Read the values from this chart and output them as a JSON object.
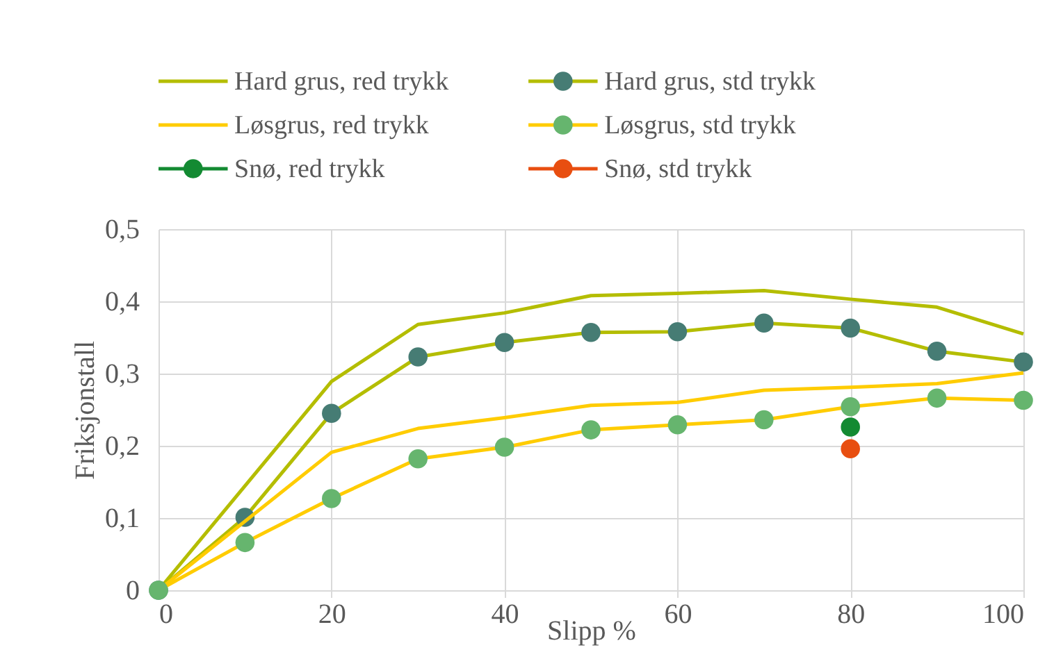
{
  "chart_data": {
    "type": "line",
    "xlabel": "Slipp %",
    "ylabel": "Friksjonstall",
    "xlim": [
      0,
      100
    ],
    "xticks": [
      0,
      20,
      40,
      60,
      80,
      100
    ],
    "ylim": [
      0,
      0.5
    ],
    "yticks": [
      {
        "value": 0,
        "label": "0"
      },
      {
        "value": 0.1,
        "label": "0,1"
      },
      {
        "value": 0.2,
        "label": "0,2"
      },
      {
        "value": 0.3,
        "label": "0,3"
      },
      {
        "value": 0.4,
        "label": "0,4"
      },
      {
        "value": 0.5,
        "label": "0,5"
      }
    ],
    "grid": true,
    "legend": "top",
    "series": [
      {
        "name": "Hard grus, red trykk",
        "marker": "none",
        "color": "#b4bd00",
        "x": [
          0,
          20,
          30,
          40,
          50,
          60,
          70,
          80,
          90,
          100
        ],
        "values": [
          0,
          0.289,
          0.368,
          0.384,
          0.408,
          0.411,
          0.415,
          0.403,
          0.392,
          0.355
        ]
      },
      {
        "name": "Hard grus, std trykk",
        "marker": "circle",
        "color": "#b4bd00",
        "colors": [
          "#467c74",
          "#467c74",
          "#467c74",
          "#467c74",
          "#467c74",
          "#467c74",
          "#467c74",
          "#467c74",
          "#467c74",
          "#467c74",
          "#467c74"
        ],
        "x": [
          0,
          10,
          20,
          30,
          40,
          50,
          60,
          70,
          80,
          90,
          100
        ],
        "values": [
          0,
          0.101,
          0.245,
          0.323,
          0.343,
          0.357,
          0.358,
          0.37,
          0.363,
          0.331,
          0.316
        ]
      },
      {
        "name": "Løsgrus, red trykk",
        "marker": "none",
        "color": "#ffcc00",
        "x": [
          0,
          20,
          30,
          40,
          50,
          60,
          70,
          80,
          90,
          100
        ],
        "values": [
          0,
          0.191,
          0.224,
          0.239,
          0.256,
          0.26,
          0.277,
          0.281,
          0.286,
          0.301
        ]
      },
      {
        "name": "Løsgrus, std trykk",
        "marker": "circle",
        "color": "#ffcc00",
        "colors": [
          "#66b56e",
          "#66b56e",
          "#66b56e",
          "#66b56e",
          "#66b56e",
          "#66b56e",
          "#66b56e",
          "#66b56e",
          "#66b56e",
          "#66b56e",
          "#66b56e"
        ],
        "x": [
          0,
          10,
          20,
          30,
          40,
          50,
          60,
          70,
          80,
          90,
          100
        ],
        "values": [
          0,
          0.066,
          0.127,
          0.182,
          0.198,
          0.222,
          0.229,
          0.236,
          0.254,
          0.266,
          0.263
        ]
      },
      {
        "name": "Snø, red trykk",
        "marker": "circle",
        "color": "#138a32",
        "x": [
          80
        ],
        "values": [
          0.226
        ]
      },
      {
        "name": "Snø, std trykk",
        "marker": "circle",
        "color": "#e84e10",
        "x": [
          80
        ],
        "values": [
          0.196
        ]
      }
    ]
  }
}
